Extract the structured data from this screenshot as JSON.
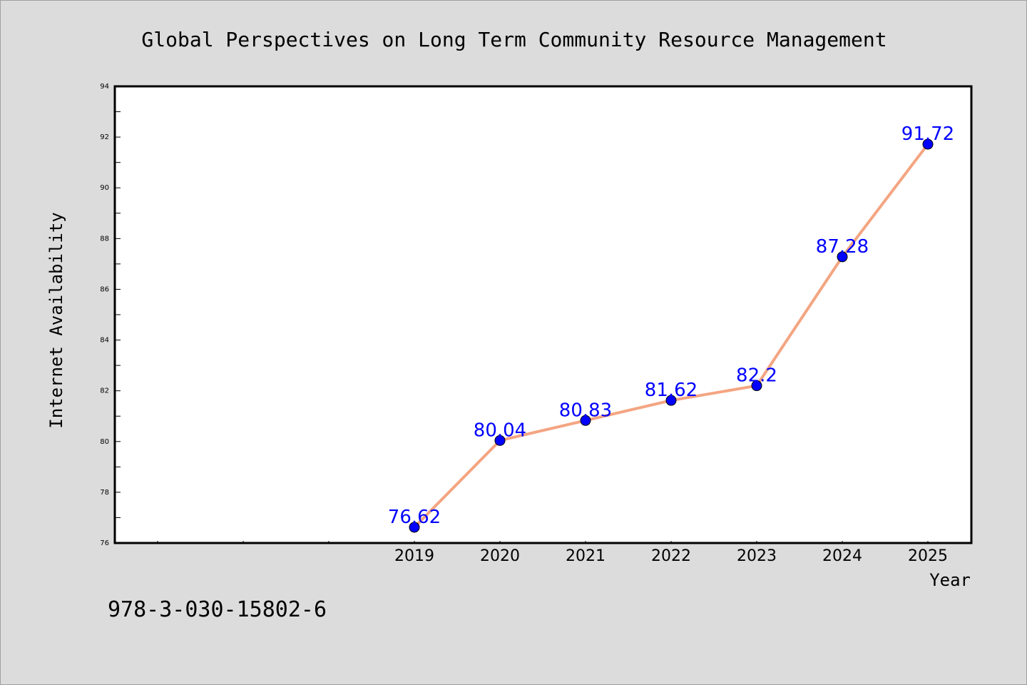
{
  "chart_data": {
    "type": "line",
    "title": "Global Perspectives on Long Term Community Resource Management",
    "xlabel": "Year",
    "ylabel": "Internet Availability",
    "categories": [
      "2019",
      "2020",
      "2021",
      "2022",
      "2023",
      "2024",
      "2025"
    ],
    "series": [
      {
        "values": [
          76.62,
          80.04,
          80.83,
          81.62,
          82.2,
          87.28,
          91.72
        ],
        "labels": [
          "76.62",
          "80.04",
          "80.83",
          "81.62",
          "82.2",
          "87.28",
          "91.72"
        ],
        "line_color": "#f4a582",
        "marker_color": "#0000ff"
      }
    ],
    "ylim": [
      76,
      94
    ],
    "yticks": [
      "76",
      "78",
      "80",
      "82",
      "84",
      "86",
      "88",
      "90",
      "92",
      "94"
    ],
    "grid": false,
    "legend": "none",
    "label_color": "#0000ff"
  },
  "footer": {
    "code": "978-3-030-15802-6"
  }
}
